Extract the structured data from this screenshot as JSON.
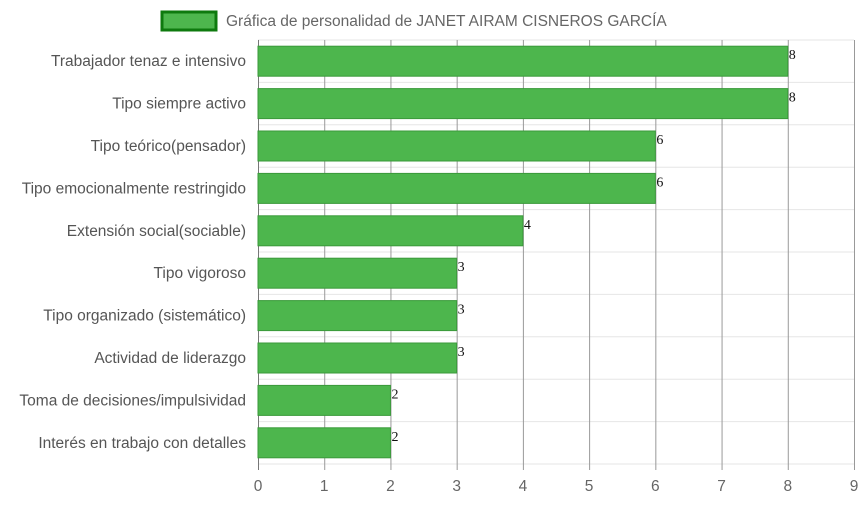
{
  "chart_data": {
    "type": "bar",
    "orientation": "horizontal",
    "categories": [
      "Trabajador tenaz e intensivo",
      "Tipo siempre activo",
      "Tipo teórico(pensador)",
      "Tipo emocionalmente restringido",
      "Extensión social(sociable)",
      "Tipo vigoroso",
      "Tipo organizado (sistemático)",
      "Actividad de liderazgo",
      "Toma de decisiones/impulsividad",
      "Interés en trabajo con detalles"
    ],
    "series": [
      {
        "name": "Gráfica de personalidad de JANET AIRAM CISNEROS GARCÍA",
        "values": [
          8,
          8,
          6,
          6,
          4,
          3,
          3,
          3,
          2,
          2
        ]
      }
    ],
    "xlim": [
      0,
      9
    ],
    "xticks": [
      "0",
      "1",
      "2",
      "3",
      "4",
      "5",
      "6",
      "7",
      "8",
      "9"
    ],
    "data_labels": true,
    "grid": true,
    "legend_position": "top-center",
    "colors": {
      "bar_fill": "#4db64d",
      "bar_border": "#3a9a3a",
      "legend_fill": "#4db64d",
      "legend_border": "#0e7a0e",
      "grid": "#e6e6e6",
      "grid_major": "#999999"
    }
  }
}
